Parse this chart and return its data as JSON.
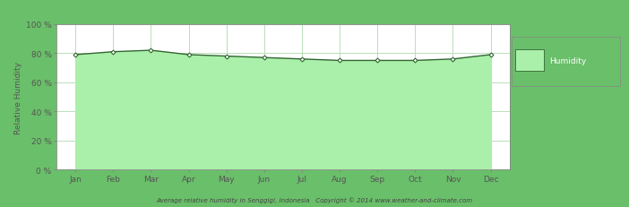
{
  "months": [
    "Jan",
    "Feb",
    "Mar",
    "Apr",
    "May",
    "Jun",
    "Jul",
    "Aug",
    "Sep",
    "Oct",
    "Nov",
    "Dec"
  ],
  "humidity": [
    79,
    81,
    82,
    79,
    78,
    77,
    76,
    75,
    75,
    75,
    76,
    79
  ],
  "ylim": [
    0,
    100
  ],
  "yticks": [
    0,
    20,
    40,
    60,
    80,
    100
  ],
  "ytick_labels": [
    "0 %",
    "20 %",
    "40 %",
    "60 %",
    "80 %",
    "100 %"
  ],
  "ylabel": "Relative Humidity",
  "fill_color": "#aaf0aa",
  "line_color": "#336633",
  "marker_color": "#336633",
  "background_color": "#6abf6a",
  "plot_bg_color": "#ffffff",
  "grid_color": "#bbddbb",
  "legend_label": "Humidity",
  "legend_fill_color": "#aaf0aa",
  "legend_edge_color": "#336633",
  "legend_bg_color": "#6abf6a",
  "footer_text": "Average relative humidity in Senggigi, Indonesia   Copyright © 2014 www.weather-and-climate.com",
  "tick_color": "#555555",
  "spine_color": "#888888"
}
